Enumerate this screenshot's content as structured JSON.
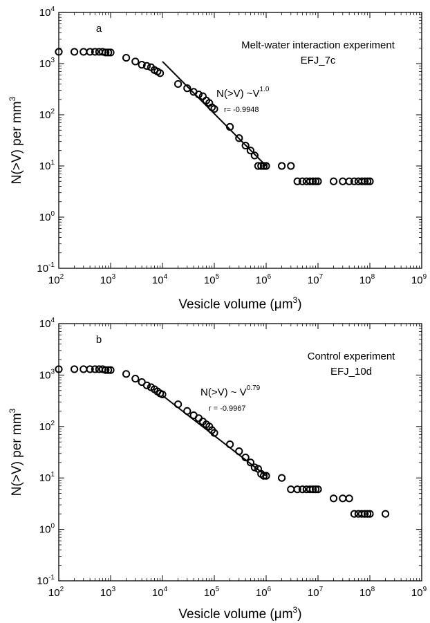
{
  "chart_data": [
    {
      "type": "scatter",
      "panel_label": "a",
      "annotation": [
        "Melt-water interaction experiment",
        "EFJ_7c"
      ],
      "fit_label": {
        "base": "N(>V) ~V",
        "exponent": "1.0",
        "r": "r= -0.9948"
      },
      "xlabel": {
        "base": "Vesicle volume (",
        "unit": "μm",
        "exponent": "3",
        "close": ")"
      },
      "ylabel": {
        "base": "N(>V) per mm",
        "exponent": "3"
      },
      "x_scale": "log",
      "y_scale": "log",
      "xlim": [
        100,
        1000000000
      ],
      "ylim": [
        0.1,
        10000
      ],
      "x_ticks": [
        {
          "base": "10",
          "exp": "2"
        },
        {
          "base": "10",
          "exp": "3"
        },
        {
          "base": "10",
          "exp": "4"
        },
        {
          "base": "10",
          "exp": "5"
        },
        {
          "base": "10",
          "exp": "6"
        },
        {
          "base": "10",
          "exp": "7"
        },
        {
          "base": "10",
          "exp": "8"
        },
        {
          "base": "10",
          "exp": "9"
        }
      ],
      "y_ticks": [
        {
          "base": "10",
          "exp": "-1"
        },
        {
          "base": "10",
          "exp": "0"
        },
        {
          "base": "10",
          "exp": "1"
        },
        {
          "base": "10",
          "exp": "2"
        },
        {
          "base": "10",
          "exp": "3"
        },
        {
          "base": "10",
          "exp": "4"
        }
      ],
      "grid": false,
      "marker": "open-circle",
      "points": [
        [
          100,
          1700
        ],
        [
          200,
          1700
        ],
        [
          300,
          1700
        ],
        [
          400,
          1700
        ],
        [
          500,
          1700
        ],
        [
          600,
          1700
        ],
        [
          700,
          1700
        ],
        [
          800,
          1650
        ],
        [
          900,
          1650
        ],
        [
          1000,
          1650
        ],
        [
          2000,
          1300
        ],
        [
          3000,
          1100
        ],
        [
          4000,
          950
        ],
        [
          5000,
          900
        ],
        [
          6000,
          850
        ],
        [
          7000,
          750
        ],
        [
          8000,
          700
        ],
        [
          9000,
          650
        ],
        [
          20000,
          400
        ],
        [
          30000,
          330
        ],
        [
          40000,
          280
        ],
        [
          50000,
          250
        ],
        [
          60000,
          230
        ],
        [
          70000,
          190
        ],
        [
          80000,
          170
        ],
        [
          90000,
          140
        ],
        [
          100000,
          130
        ],
        [
          200000,
          58
        ],
        [
          300000,
          35
        ],
        [
          400000,
          25
        ],
        [
          500000,
          20
        ],
        [
          600000,
          16
        ],
        [
          700000,
          10
        ],
        [
          800000,
          10
        ],
        [
          900000,
          10
        ],
        [
          1000000,
          10
        ],
        [
          2000000,
          10
        ],
        [
          3000000,
          10
        ],
        [
          4000000,
          5
        ],
        [
          5000000,
          5
        ],
        [
          6000000,
          5
        ],
        [
          7000000,
          5
        ],
        [
          8000000,
          5
        ],
        [
          9000000,
          5
        ],
        [
          10000000,
          5
        ],
        [
          20000000,
          5
        ],
        [
          30000000,
          5
        ],
        [
          40000000,
          5
        ],
        [
          50000000,
          5
        ],
        [
          60000000,
          5
        ],
        [
          70000000,
          5
        ],
        [
          80000000,
          5
        ],
        [
          90000000,
          5
        ],
        [
          100000000,
          5
        ]
      ],
      "fit_line": [
        [
          10000,
          1100
        ],
        [
          1000000,
          10
        ]
      ]
    },
    {
      "type": "scatter",
      "panel_label": "b",
      "annotation": [
        "Control experiment",
        "EFJ_10d"
      ],
      "fit_label": {
        "base": "N(>V) ~ V",
        "exponent": "0.79",
        "r": "r = -0.9967"
      },
      "xlabel": {
        "base": "Vesicle volume (",
        "unit": "μm",
        "exponent": "3",
        "close": ")"
      },
      "ylabel": {
        "base": "N(>V) per mm",
        "exponent": "3"
      },
      "x_scale": "log",
      "y_scale": "log",
      "xlim": [
        100,
        1000000000
      ],
      "ylim": [
        0.1,
        10000
      ],
      "x_ticks": [
        {
          "base": "10",
          "exp": "2"
        },
        {
          "base": "10",
          "exp": "3"
        },
        {
          "base": "10",
          "exp": "4"
        },
        {
          "base": "10",
          "exp": "5"
        },
        {
          "base": "10",
          "exp": "6"
        },
        {
          "base": "10",
          "exp": "7"
        },
        {
          "base": "10",
          "exp": "8"
        },
        {
          "base": "10",
          "exp": "9"
        }
      ],
      "y_ticks": [
        {
          "base": "10",
          "exp": "-1"
        },
        {
          "base": "10",
          "exp": "0"
        },
        {
          "base": "10",
          "exp": "1"
        },
        {
          "base": "10",
          "exp": "2"
        },
        {
          "base": "10",
          "exp": "3"
        },
        {
          "base": "10",
          "exp": "4"
        }
      ],
      "grid": false,
      "marker": "open-circle",
      "points": [
        [
          100,
          1300
        ],
        [
          200,
          1300
        ],
        [
          300,
          1300
        ],
        [
          400,
          1300
        ],
        [
          500,
          1300
        ],
        [
          600,
          1300
        ],
        [
          700,
          1300
        ],
        [
          800,
          1250
        ],
        [
          900,
          1250
        ],
        [
          1000,
          1250
        ],
        [
          2000,
          1050
        ],
        [
          3000,
          850
        ],
        [
          4000,
          730
        ],
        [
          5000,
          630
        ],
        [
          6000,
          580
        ],
        [
          7000,
          530
        ],
        [
          8000,
          480
        ],
        [
          9000,
          440
        ],
        [
          10000,
          420
        ],
        [
          20000,
          270
        ],
        [
          30000,
          200
        ],
        [
          40000,
          165
        ],
        [
          50000,
          145
        ],
        [
          60000,
          125
        ],
        [
          70000,
          110
        ],
        [
          80000,
          100
        ],
        [
          90000,
          85
        ],
        [
          100000,
          75
        ],
        [
          200000,
          45
        ],
        [
          300000,
          33
        ],
        [
          400000,
          25
        ],
        [
          500000,
          20
        ],
        [
          600000,
          16
        ],
        [
          700000,
          15
        ],
        [
          800000,
          12
        ],
        [
          900000,
          11
        ],
        [
          1000000,
          11
        ],
        [
          2000000,
          10
        ],
        [
          3000000,
          6
        ],
        [
          4000000,
          6
        ],
        [
          5000000,
          6
        ],
        [
          6000000,
          6
        ],
        [
          7000000,
          6
        ],
        [
          8000000,
          6
        ],
        [
          9000000,
          6
        ],
        [
          10000000,
          6
        ],
        [
          20000000,
          4
        ],
        [
          30000000,
          4
        ],
        [
          40000000,
          4
        ],
        [
          50000000,
          2
        ],
        [
          60000000,
          2
        ],
        [
          70000000,
          2
        ],
        [
          80000000,
          2
        ],
        [
          90000000,
          2
        ],
        [
          100000000,
          2
        ],
        [
          200000000,
          2
        ]
      ],
      "fit_line": [
        [
          10000,
          400
        ],
        [
          1000000,
          11
        ]
      ]
    }
  ]
}
